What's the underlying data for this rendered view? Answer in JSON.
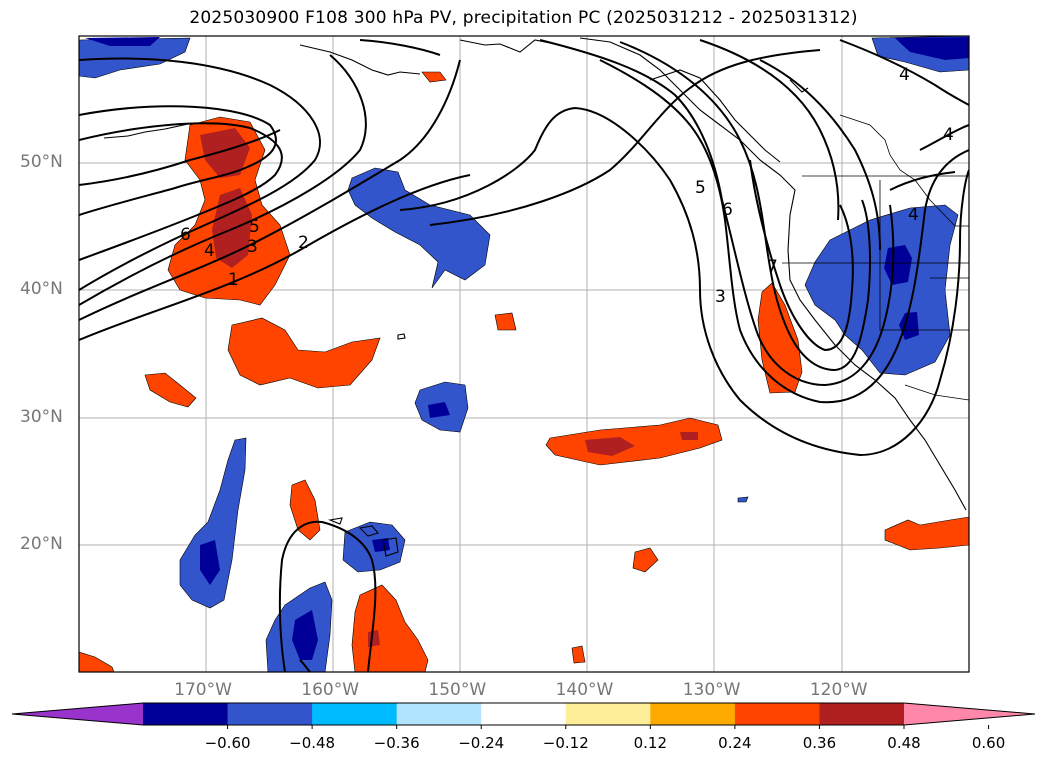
{
  "title": "2025030900 F108 300 hPa PV, precipitation PC (2025031212 - 2025031312)",
  "map": {
    "lon_range": [
      -180,
      -110
    ],
    "lat_range": [
      10,
      60
    ],
    "gridlines": true,
    "lat_labels": [
      {
        "lat": 50,
        "text": "50°N"
      },
      {
        "lat": 40,
        "text": "40°N"
      },
      {
        "lat": 30,
        "text": "30°N"
      },
      {
        "lat": 20,
        "text": "20°N"
      }
    ],
    "lon_labels": [
      {
        "lon": -170,
        "text": "170°W"
      },
      {
        "lon": -160,
        "text": "160°W"
      },
      {
        "lon": -150,
        "text": "150°W"
      },
      {
        "lon": -140,
        "text": "140°W"
      },
      {
        "lon": -130,
        "text": "130°W"
      },
      {
        "lon": -120,
        "text": "120°W"
      }
    ],
    "contour_labels": [
      "1",
      "2",
      "3",
      "4",
      "5",
      "6",
      "5",
      "6",
      "7",
      "3",
      "4",
      "4",
      "4"
    ]
  },
  "colorbar": {
    "extend": "both",
    "colors": [
      "#9933cc",
      "#000099",
      "#3355cc",
      "#00bbff",
      "#b0e4ff",
      "#ffffff",
      "#ffee99",
      "#ffaa00",
      "#ff4400",
      "#b02020",
      "#ff88aa"
    ],
    "labels": [
      "−0.60",
      "−0.48",
      "−0.36",
      "−0.24",
      "−0.12",
      "0.12",
      "0.24",
      "0.36",
      "0.48",
      "0.60"
    ]
  }
}
